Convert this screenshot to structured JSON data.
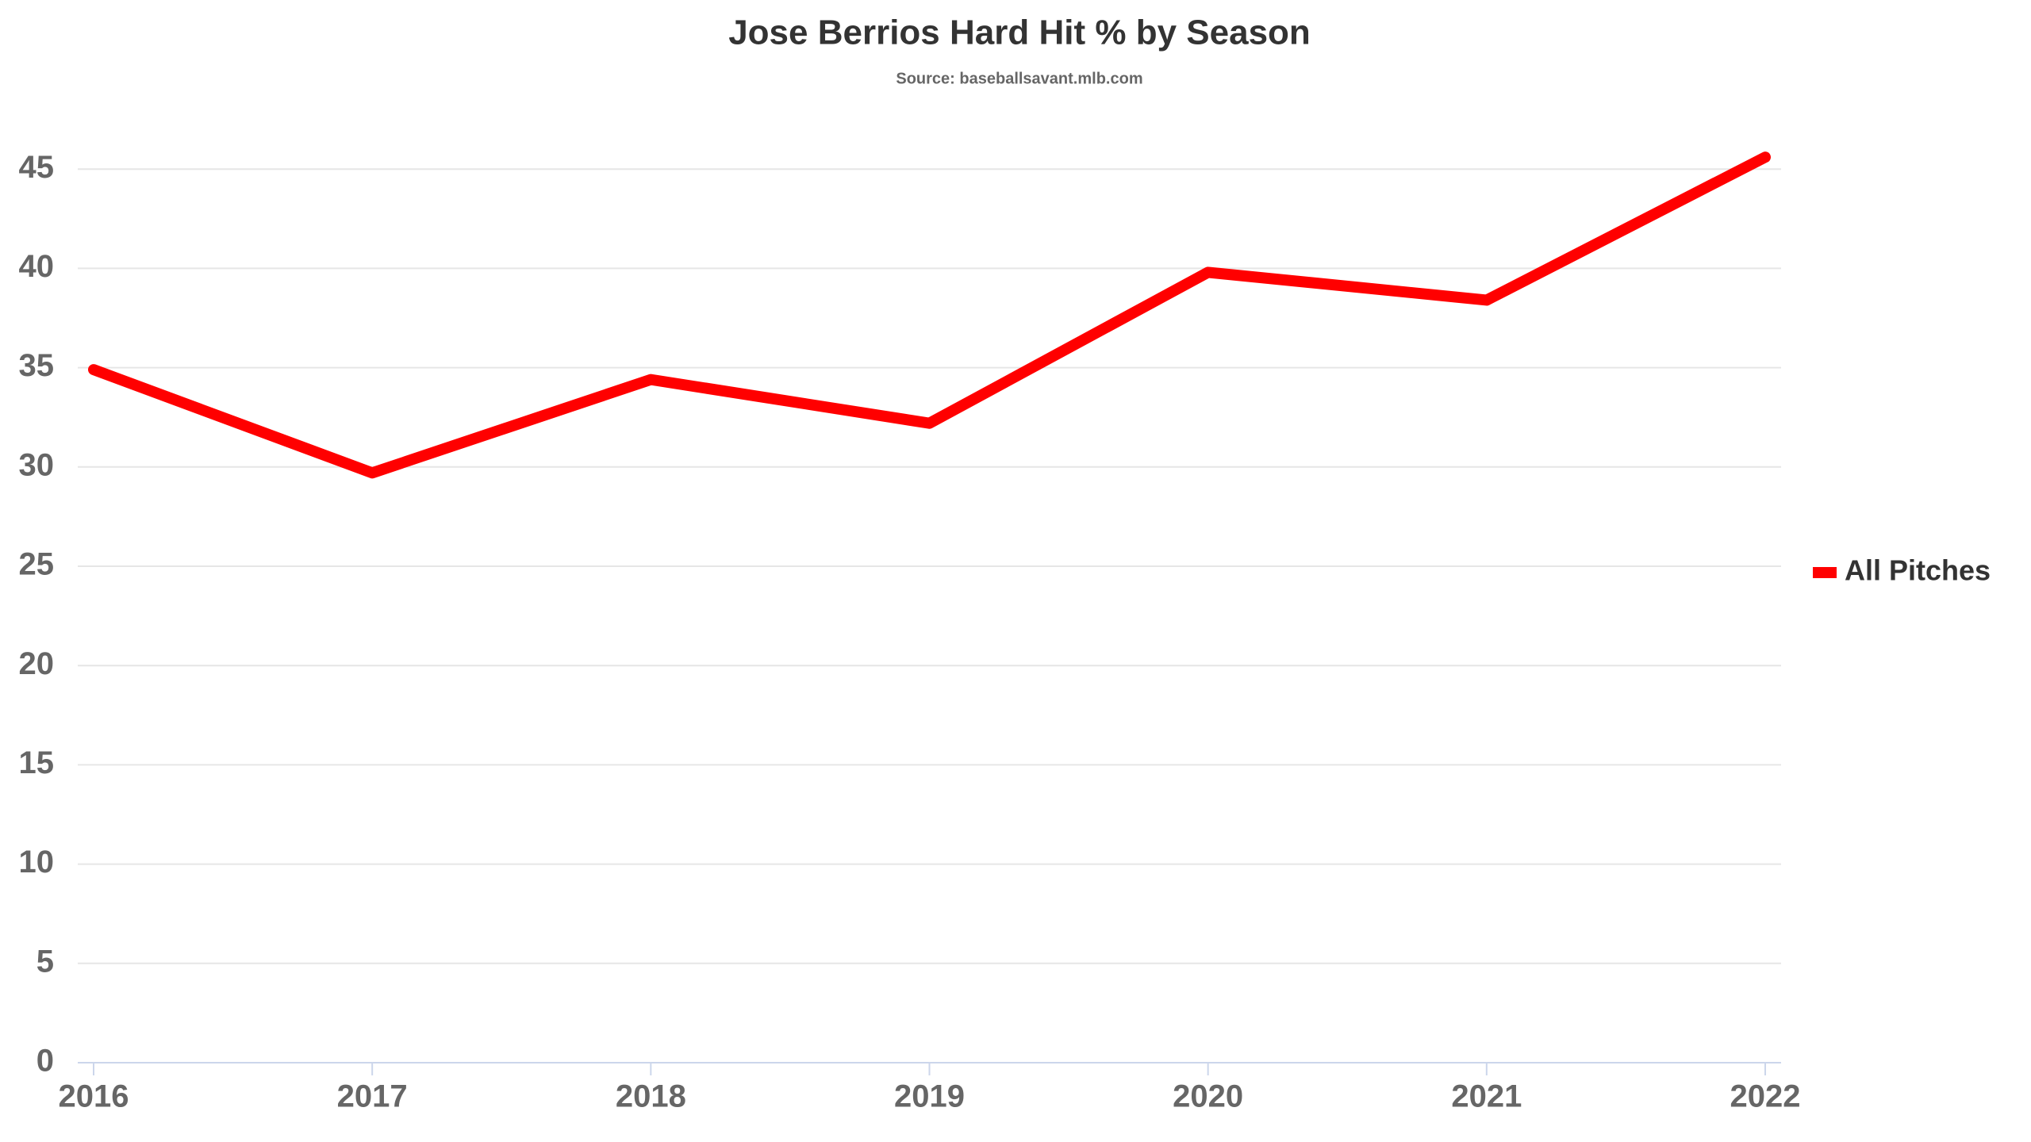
{
  "chart_data": {
    "type": "line",
    "title": "Jose Berrios Hard Hit % by Season",
    "subtitle": "Source: baseballsavant.mlb.com",
    "categories": [
      "2016",
      "2017",
      "2018",
      "2019",
      "2020",
      "2021",
      "2022"
    ],
    "series": [
      {
        "name": "All Pitches",
        "color": "#ff0000",
        "values": [
          34.9,
          29.7,
          34.4,
          32.2,
          39.8,
          38.4,
          45.6
        ]
      }
    ],
    "ylim": [
      0,
      47
    ],
    "yticks": [
      0,
      5,
      10,
      15,
      20,
      25,
      30,
      35,
      40,
      45
    ],
    "grid": true,
    "legend": "right"
  }
}
